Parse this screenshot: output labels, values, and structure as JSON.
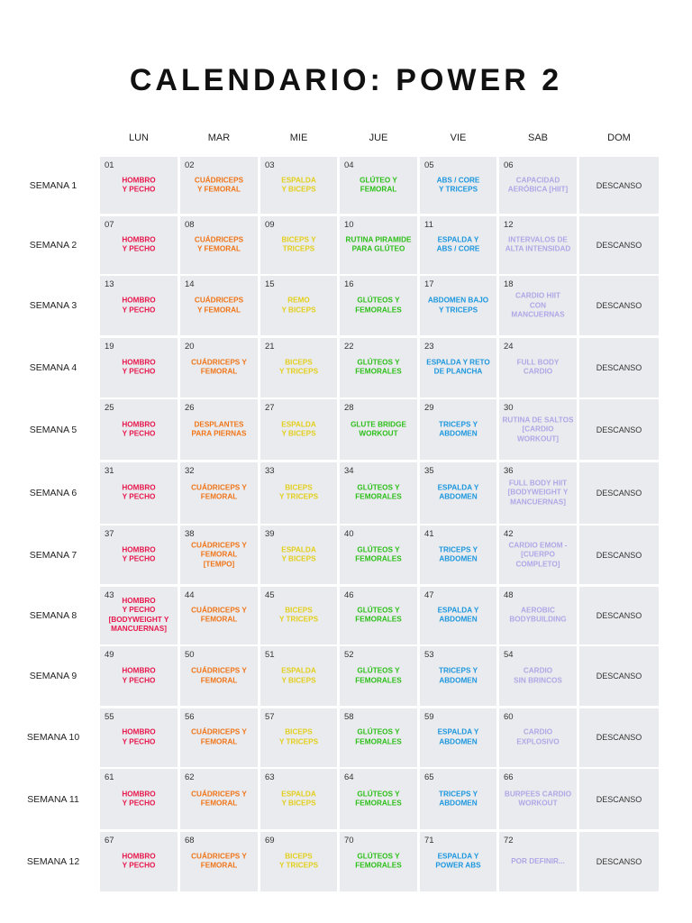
{
  "title": "CALENDARIO: POWER 2",
  "days": [
    "LUN",
    "MAR",
    "MIE",
    "JUE",
    "VIE",
    "SAB",
    "DOM"
  ],
  "weeks": [
    {
      "label": "SEMANA 1",
      "rest": "DESCANSO",
      "days": [
        {
          "num": "01",
          "text": "HOMBRO\nY PECHO"
        },
        {
          "num": "02",
          "text": "CUÁDRICEPS\nY FEMORAL"
        },
        {
          "num": "03",
          "text": "ESPALDA\nY BICEPS"
        },
        {
          "num": "04",
          "text": "GLÚTEO Y\nFEMORAL"
        },
        {
          "num": "05",
          "text": "ABS / CORE\nY TRICEPS"
        },
        {
          "num": "06",
          "text": "CAPACIDAD\nAERÓBICA [HIIT]"
        }
      ]
    },
    {
      "label": "SEMANA 2",
      "rest": "DESCANSO",
      "days": [
        {
          "num": "07",
          "text": "HOMBRO\nY PECHO"
        },
        {
          "num": "08",
          "text": "CUÁDRICEPS\nY FEMORAL"
        },
        {
          "num": "09",
          "text": "BICEPS Y\nTRICEPS"
        },
        {
          "num": "10",
          "text": "RUTINA PIRAMIDE\nPARA GLÚTEO"
        },
        {
          "num": "11",
          "text": "ESPALDA Y\nABS / CORE"
        },
        {
          "num": "12",
          "text": "INTERVALOS DE\nALTA INTENSIDAD"
        }
      ]
    },
    {
      "label": "SEMANA 3",
      "rest": "DESCANSO",
      "days": [
        {
          "num": "13",
          "text": "HOMBRO\nY PECHO"
        },
        {
          "num": "14",
          "text": "CUÁDRICEPS\nY FEMORAL"
        },
        {
          "num": "15",
          "text": "REMO\nY BICEPS"
        },
        {
          "num": "16",
          "text": "GLÚTEOS Y\nFEMORALES"
        },
        {
          "num": "17",
          "text": "ABDOMEN BAJO\nY TRICEPS"
        },
        {
          "num": "18",
          "text": "CARDIO HIIT\nCON\nMANCUERNAS"
        }
      ]
    },
    {
      "label": "SEMANA 4",
      "rest": "DESCANSO",
      "days": [
        {
          "num": "19",
          "text": "HOMBRO\nY PECHO"
        },
        {
          "num": "20",
          "text": "CUÁDRICEPS Y\nFEMORAL"
        },
        {
          "num": "21",
          "text": "BICEPS\nY TRICEPS"
        },
        {
          "num": "22",
          "text": "GLÚTEOS Y\nFEMORALES"
        },
        {
          "num": "23",
          "text": "ESPALDA Y RETO\nDE PLANCHA"
        },
        {
          "num": "24",
          "text": "FULL BODY\nCARDIO"
        }
      ]
    },
    {
      "label": "SEMANA 5",
      "rest": "DESCANSO",
      "days": [
        {
          "num": "25",
          "text": "HOMBRO\nY PECHO"
        },
        {
          "num": "26",
          "text": "DESPLANTES\nPARA PIERNAS"
        },
        {
          "num": "27",
          "text": "ESPALDA\nY BICEPS"
        },
        {
          "num": "28",
          "text": "GLUTE BRIDGE\nWORKOUT"
        },
        {
          "num": "29",
          "text": "TRICEPS Y\nABDOMEN"
        },
        {
          "num": "30",
          "text": "RUTINA DE SALTOS\n[CARDIO\nWORKOUT]"
        }
      ]
    },
    {
      "label": "SEMANA 6",
      "rest": "DESCANSO",
      "days": [
        {
          "num": "31",
          "text": "HOMBRO\nY PECHO"
        },
        {
          "num": "32",
          "text": "CUÁDRICEPS Y\nFEMORAL"
        },
        {
          "num": "33",
          "text": "BICEPS\nY TRICEPS"
        },
        {
          "num": "34",
          "text": "GLÚTEOS Y\nFEMORALES"
        },
        {
          "num": "35",
          "text": "ESPALDA Y\nABDOMEN"
        },
        {
          "num": "36",
          "text": "FULL BODY HIIT\n[BODYWEIGHT Y\nMANCUERNAS]"
        }
      ]
    },
    {
      "label": "SEMANA 7",
      "rest": "DESCANSO",
      "days": [
        {
          "num": "37",
          "text": "HOMBRO\nY PECHO"
        },
        {
          "num": "38",
          "text": "CUÁDRICEPS Y\nFEMORAL\n[TEMPO]"
        },
        {
          "num": "39",
          "text": "ESPALDA\nY BICEPS"
        },
        {
          "num": "40",
          "text": "GLÚTEOS Y\nFEMORALES"
        },
        {
          "num": "41",
          "text": "TRICEPS Y\nABDOMEN"
        },
        {
          "num": "42",
          "text": "CARDIO EMOM -\n[CUERPO\nCOMPLETO]"
        }
      ]
    },
    {
      "label": "SEMANA 8",
      "rest": "DESCANSO",
      "days": [
        {
          "num": "43",
          "text": "HOMBRO\nY PECHO\n[BODYWEIGHT Y\nMANCUERNAS]"
        },
        {
          "num": "44",
          "text": "CUÁDRICEPS Y\nFEMORAL"
        },
        {
          "num": "45",
          "text": "BICEPS\nY TRICEPS"
        },
        {
          "num": "46",
          "text": "GLÚTEOS Y\nFEMORALES"
        },
        {
          "num": "47",
          "text": "ESPALDA Y\nABDOMEN"
        },
        {
          "num": "48",
          "text": "AEROBIC\nBODYBUILDING"
        }
      ]
    },
    {
      "label": "SEMANA 9",
      "rest": "DESCANSO",
      "days": [
        {
          "num": "49",
          "text": "HOMBRO\nY PECHO"
        },
        {
          "num": "50",
          "text": "CUÁDRICEPS Y\nFEMORAL"
        },
        {
          "num": "51",
          "text": "ESPALDA\nY BICEPS"
        },
        {
          "num": "52",
          "text": "GLÚTEOS Y\nFEMORALES"
        },
        {
          "num": "53",
          "text": "TRICEPS Y\nABDOMEN"
        },
        {
          "num": "54",
          "text": "CARDIO\nSIN BRINCOS"
        }
      ]
    },
    {
      "label": "SEMANA 10",
      "rest": "DESCANSO",
      "days": [
        {
          "num": "55",
          "text": "HOMBRO\nY PECHO"
        },
        {
          "num": "56",
          "text": "CUÁDRICEPS Y\nFEMORAL"
        },
        {
          "num": "57",
          "text": "BICEPS\nY TRICEPS"
        },
        {
          "num": "58",
          "text": "GLÚTEOS Y\nFEMORALES"
        },
        {
          "num": "59",
          "text": "ESPALDA Y\nABDOMEN"
        },
        {
          "num": "60",
          "text": "CARDIO\nEXPLOSIVO"
        }
      ]
    },
    {
      "label": "SEMANA 11",
      "rest": "DESCANSO",
      "days": [
        {
          "num": "61",
          "text": "HOMBRO\nY PECHO"
        },
        {
          "num": "62",
          "text": "CUÁDRICEPS Y\nFEMORAL"
        },
        {
          "num": "63",
          "text": "ESPALDA\nY BICEPS"
        },
        {
          "num": "64",
          "text": "GLÚTEOS Y\nFEMORALES"
        },
        {
          "num": "65",
          "text": "TRICEPS Y\nABDOMEN"
        },
        {
          "num": "66",
          "text": "BURPEES CARDIO\nWORKOUT"
        }
      ]
    },
    {
      "label": "SEMANA 12",
      "rest": "DESCANSO",
      "days": [
        {
          "num": "67",
          "text": "HOMBRO\nY PECHO"
        },
        {
          "num": "68",
          "text": "CUÁDRICEPS Y\nFEMORAL"
        },
        {
          "num": "69",
          "text": "BICEPS\nY TRICEPS"
        },
        {
          "num": "70",
          "text": "GLÚTEOS Y\nFEMORALES"
        },
        {
          "num": "71",
          "text": "ESPALDA Y\nPOWER ABS"
        },
        {
          "num": "72",
          "text": "POR DEFINIR..."
        }
      ]
    }
  ]
}
